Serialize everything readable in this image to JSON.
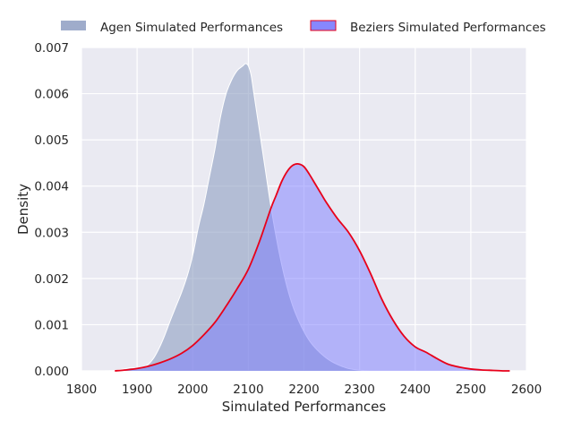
{
  "chart_data": {
    "type": "area",
    "title": "",
    "xlabel": "Simulated Performances",
    "ylabel": "Density",
    "xlim": [
      1800,
      2600
    ],
    "ylim": [
      0,
      0.007
    ],
    "x_ticks": [
      1800,
      1900,
      2000,
      2100,
      2200,
      2300,
      2400,
      2500,
      2600
    ],
    "x_tick_labels": [
      "1800",
      "1900",
      "2000",
      "2100",
      "2200",
      "2300",
      "2400",
      "2500",
      "2600"
    ],
    "y_ticks": [
      0,
      0.001,
      0.002,
      0.003,
      0.004,
      0.005,
      0.006,
      0.007
    ],
    "y_tick_labels": [
      "0.000",
      "0.001",
      "0.002",
      "0.003",
      "0.004",
      "0.005",
      "0.006",
      "0.007"
    ],
    "grid": true,
    "legend": {
      "placement": "top",
      "columns": 2
    },
    "colors": {
      "background": "#eaeaf2",
      "grid": "#ffffff",
      "agen_fill": "#8e9ec2",
      "agen_line": "#ffffff",
      "beziers_fill": "#7a7aff",
      "beziers_line": "#e8001a"
    },
    "series": [
      {
        "name": "Agen Simulated Performances",
        "x": [
          1840,
          1860,
          1880,
          1890,
          1900,
          1910,
          1920,
          1930,
          1940,
          1950,
          1960,
          1970,
          1980,
          1990,
          2000,
          2010,
          2020,
          2030,
          2040,
          2050,
          2060,
          2070,
          2080,
          2090,
          2095,
          2100,
          2105,
          2110,
          2120,
          2130,
          2140,
          2150,
          2160,
          2170,
          2180,
          2190,
          2200,
          2210,
          2220,
          2230,
          2240,
          2250,
          2260,
          2270,
          2280,
          2290,
          2300,
          2310,
          2320,
          2330
        ],
        "y": [
          0.0,
          1e-05,
          5e-05,
          7e-05,
          5e-05,
          7e-05,
          0.00014,
          0.00028,
          0.0005,
          0.00078,
          0.0011,
          0.0014,
          0.0017,
          0.00205,
          0.0025,
          0.0031,
          0.0036,
          0.0042,
          0.0048,
          0.0055,
          0.006,
          0.0063,
          0.0065,
          0.0066,
          0.00665,
          0.0066,
          0.0064,
          0.006,
          0.0052,
          0.0044,
          0.0036,
          0.0029,
          0.0023,
          0.0018,
          0.0014,
          0.0011,
          0.00085,
          0.00065,
          0.0005,
          0.00038,
          0.00028,
          0.0002,
          0.00014,
          9e-05,
          5e-05,
          3e-05,
          1.5e-05,
          5e-06,
          0.0,
          0.0
        ]
      },
      {
        "name": "Beziers Simulated Performances",
        "x": [
          1860,
          1880,
          1900,
          1920,
          1940,
          1960,
          1980,
          2000,
          2020,
          2040,
          2060,
          2080,
          2100,
          2120,
          2140,
          2150,
          2160,
          2170,
          2180,
          2190,
          2200,
          2210,
          2220,
          2230,
          2240,
          2260,
          2280,
          2300,
          2320,
          2340,
          2360,
          2380,
          2400,
          2420,
          2440,
          2460,
          2480,
          2500,
          2520,
          2540,
          2560,
          2570
        ],
        "y": [
          0.0,
          2e-05,
          5e-05,
          0.0001,
          0.00017,
          0.00026,
          0.00038,
          0.00055,
          0.00078,
          0.00105,
          0.0014,
          0.00178,
          0.0022,
          0.0028,
          0.0035,
          0.0038,
          0.0041,
          0.00432,
          0.00445,
          0.00448,
          0.00442,
          0.00425,
          0.00405,
          0.00385,
          0.00365,
          0.0033,
          0.003,
          0.0026,
          0.0021,
          0.00155,
          0.0011,
          0.00075,
          0.00052,
          0.0004,
          0.00026,
          0.00014,
          8e-05,
          4e-05,
          2e-05,
          1e-05,
          0.0,
          0.0
        ]
      }
    ]
  }
}
